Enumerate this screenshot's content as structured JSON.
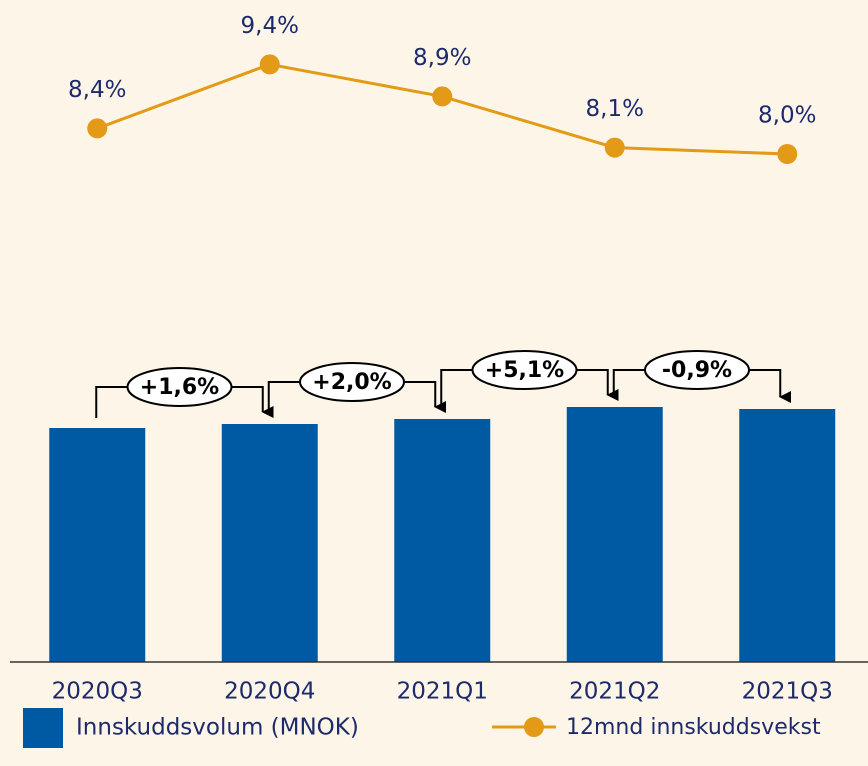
{
  "chart_data": {
    "type": "bar",
    "categories": [
      "2020Q3",
      "2020Q4",
      "2021Q1",
      "2021Q2",
      "2021Q3"
    ],
    "series": [
      {
        "name": "Innskuddsvolum (MNOK)",
        "type": "bar",
        "color": "#005aa3",
        "values": [
          234,
          238,
          243,
          255,
          253
        ]
      },
      {
        "name": "12mnd innskuddsvekst",
        "type": "line",
        "axis": "y2",
        "color": "#e29a17",
        "values": [
          8.4,
          9.4,
          8.9,
          8.1,
          8.0
        ],
        "value_labels": [
          "8,4%",
          "9,4%",
          "8,9%",
          "8,1%",
          "8,0%"
        ]
      }
    ],
    "annotations": [
      "+1,6%",
      "+2,0%",
      "+5,1%",
      "-0,9%"
    ],
    "ylim": [
      0,
      300
    ],
    "y2lim": [
      6,
      10
    ]
  }
}
